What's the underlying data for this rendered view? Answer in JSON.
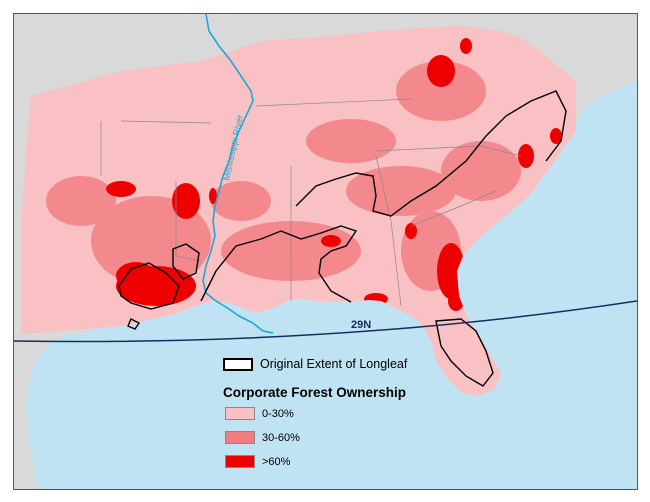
{
  "map": {
    "river_label": "Mississippi River",
    "parallel_label": "29N",
    "colors": {
      "water": "#bfe3f2",
      "land_outside": "#d9d9d9",
      "river": "#1ba9d6",
      "parallel": "#1a2b5e",
      "extent_outline": "#000000"
    }
  },
  "legend": {
    "extent_label": "Original Extent of Longleaf",
    "title": "Corporate Forest Ownership",
    "categories": [
      {
        "label": "0-30%",
        "color": "#f9c1c4"
      },
      {
        "label": "30-60%",
        "color": "#f27b80"
      },
      {
        "label": ">60%",
        "color": "#ee0000"
      }
    ]
  }
}
